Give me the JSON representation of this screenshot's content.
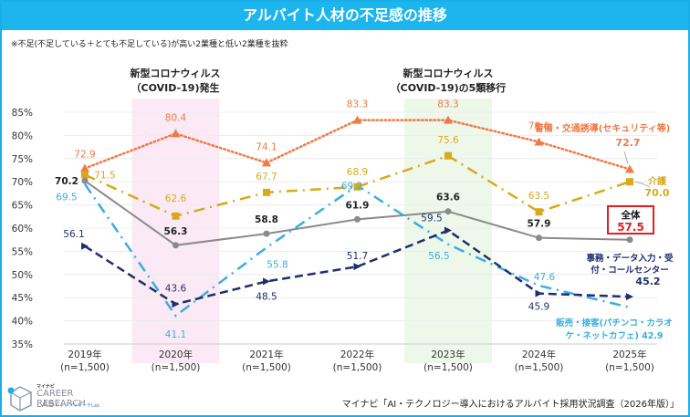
{
  "header": {
    "title": "アルバイト人材の不足感の推移",
    "note": "※不足(不足している＋とても不足している)が高い2業種と低い2業種を抜粋"
  },
  "annotations": {
    "covid_start": [
      "新型コロナウィルス",
      "（COVID-19)発生"
    ],
    "covid_class5": [
      "新型コロナウィルス",
      "（COVID-19)の5類移行"
    ]
  },
  "footer": {
    "logo_small": "マイナビ",
    "logo_line1": "CAREER RESEARCH",
    "logo_line2": "LAB",
    "logo_sub": "キャリアリサーチLab",
    "source": "マイナビ「AI・テクノロジー導入におけるアルバイト採用状況調査（2026年版）」"
  },
  "chart_data": {
    "type": "line",
    "title": "アルバイト人材の不足感の推移",
    "xlabel": "",
    "ylabel": "",
    "ylim": [
      35,
      85
    ],
    "yticks": [
      "85%",
      "80%",
      "75%",
      "70%",
      "65%",
      "60%",
      "55%",
      "50%",
      "45%",
      "40%",
      "35%"
    ],
    "ytick_values": [
      85,
      80,
      75,
      70,
      65,
      60,
      55,
      50,
      45,
      40,
      35
    ],
    "categories": [
      "2019年",
      "2020年",
      "2021年",
      "2022年",
      "2023年",
      "2024年",
      "2025年"
    ],
    "category_sub": [
      "(n=1,500)",
      "(n=1,500)",
      "(n=1,500)",
      "(n=1,500)",
      "(n=1,500)",
      "(n=1,500)",
      "(n=1,500)"
    ],
    "grid": true,
    "highlight_bands": [
      {
        "category": "2020年",
        "color": "#fbeaf5"
      },
      {
        "category": "2023年",
        "color": "#eef8ea"
      }
    ],
    "series": [
      {
        "name": "警備・交通誘導(セキュリティ等)",
        "values": [
          72.9,
          80.4,
          74.1,
          83.3,
          83.3,
          78.6,
          72.7
        ],
        "color": "#ef7a45",
        "style": "dotted",
        "marker": "triangle",
        "end_label": [
          "警備・交通誘導(セキュリティ等)",
          "72.7"
        ]
      },
      {
        "name": "介護",
        "values": [
          71.5,
          62.6,
          67.7,
          68.9,
          75.6,
          63.5,
          70.0
        ],
        "color": "#d9a91a",
        "style": "dashdot",
        "marker": "square",
        "end_label": [
          "介護",
          "70.0"
        ]
      },
      {
        "name": "全体",
        "values": [
          70.2,
          56.3,
          58.8,
          61.9,
          63.6,
          57.9,
          57.5
        ],
        "color": "#8a8a8a",
        "style": "solid",
        "marker": "circle",
        "end_label": [
          "全体",
          "57.5"
        ]
      },
      {
        "name": "販売・接客(パチンコ・カラオケ・ネットカフェ)",
        "values": [
          69.5,
          41.1,
          55.8,
          69.2,
          56.5,
          47.6,
          42.9
        ],
        "color": "#3aaee0",
        "style": "dashdot",
        "marker": "none",
        "end_label": [
          "販売・接客(パチンコ・カラオ",
          "ケ・ネットカフェ) 42.9"
        ]
      },
      {
        "name": "事務・データ入力・受付・コールセンター",
        "values": [
          56.1,
          43.6,
          48.5,
          51.7,
          59.5,
          45.9,
          45.2
        ],
        "color": "#1e2f6e",
        "style": "dashed",
        "marker": "arrow",
        "end_label": [
          "事務・データ入力・受",
          "付・コールセンター",
          "45.2"
        ]
      }
    ]
  }
}
